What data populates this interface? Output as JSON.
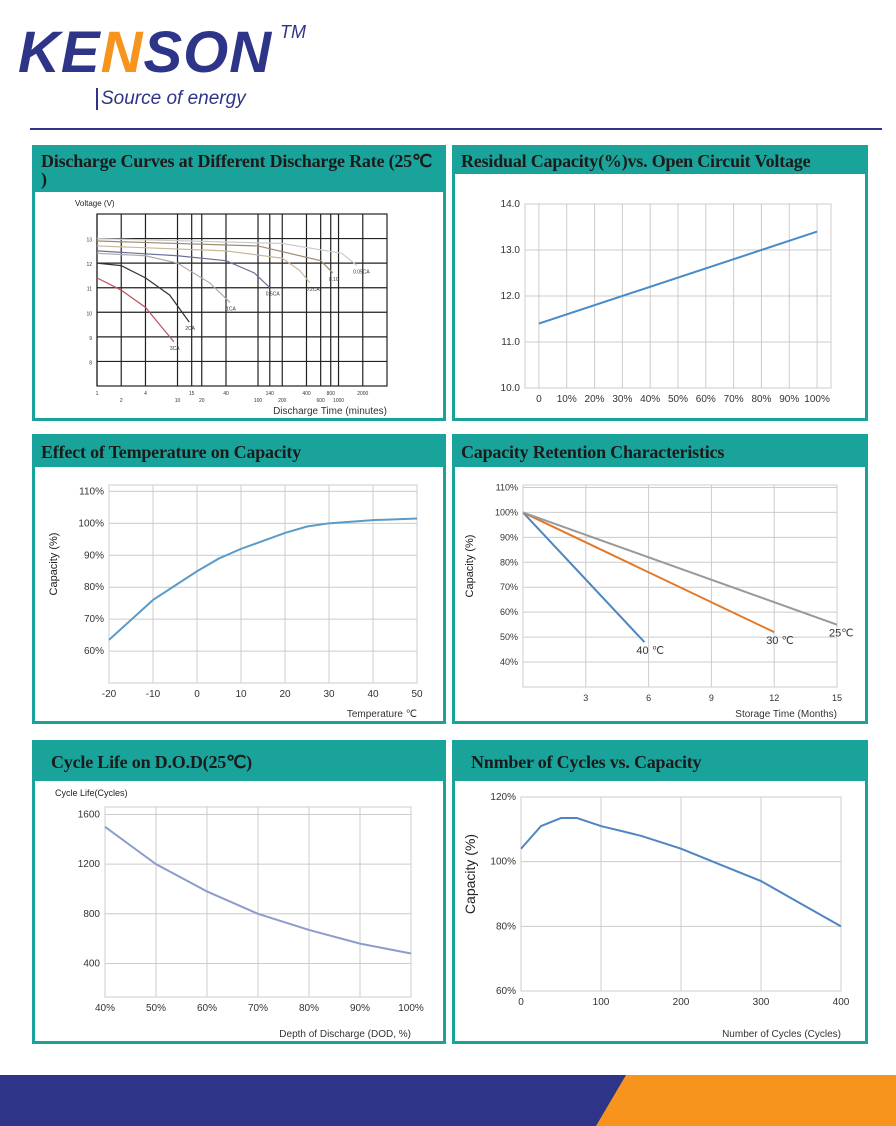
{
  "logo": {
    "brand": "KENSON",
    "tm": "TM",
    "tagline": "Source of energy"
  },
  "colors": {
    "brand_blue": "#2e3487",
    "accent_orange": "#f7941d",
    "panel_teal": "#1aa39a"
  },
  "chart_data": [
    {
      "type": "line",
      "title": "Discharge Curves at Different Discharge Rate (25℃ )",
      "ylabel": "Voltage (V)",
      "xlabel": "Discharge Time (minutes)",
      "x_scale": "log",
      "xticks": [
        "1",
        "2",
        "4",
        "10",
        "15",
        "20",
        "40",
        "100",
        "140",
        "200",
        "400",
        "600",
        "800",
        "1000",
        "2000"
      ],
      "xtick_values": [
        1,
        2,
        4,
        10,
        15,
        20,
        40,
        100,
        140,
        200,
        400,
        600,
        800,
        1000,
        2000
      ],
      "yticks": [
        8,
        9,
        10,
        11,
        12,
        13
      ],
      "ylim": [
        7,
        14
      ],
      "xlim": [
        1,
        4000
      ],
      "grid": true,
      "series": [
        {
          "name": "3CA",
          "color": "#c0505e",
          "x": [
            1,
            2,
            4,
            6,
            9
          ],
          "y": [
            11.4,
            10.9,
            10.2,
            9.5,
            8.8
          ]
        },
        {
          "name": "2CA",
          "color": "#333333",
          "x": [
            1,
            2,
            4,
            8,
            14
          ],
          "y": [
            12,
            11.9,
            11.4,
            10.7,
            9.6
          ]
        },
        {
          "name": "1CA",
          "color": "#aaaaaa",
          "x": [
            1,
            4,
            10,
            25,
            45
          ],
          "y": [
            12.4,
            12.3,
            12.0,
            11.2,
            10.4
          ]
        },
        {
          "name": "0.5CA",
          "color": "#6a6f9a",
          "x": [
            1,
            10,
            40,
            90,
            140
          ],
          "y": [
            12.5,
            12.3,
            12.1,
            11.6,
            11.0
          ]
        },
        {
          "name": "0.2CA",
          "color": "#c8b99a",
          "x": [
            1,
            40,
            200,
            330,
            440
          ],
          "y": [
            12.7,
            12.5,
            12.2,
            11.7,
            11.2
          ]
        },
        {
          "name": "0.1C",
          "color": "#a08a70",
          "x": [
            1,
            100,
            600,
            850
          ],
          "y": [
            12.9,
            12.7,
            12.1,
            11.6
          ]
        },
        {
          "name": "0.05CA",
          "color": "#cccccc",
          "x": [
            1,
            200,
            1100,
            1700
          ],
          "y": [
            13.0,
            12.8,
            12.4,
            11.9
          ]
        }
      ]
    },
    {
      "type": "line",
      "title": "Residual Capacity(%)vs. Open Circuit Voltage",
      "xticks": [
        "0",
        "10%",
        "20%",
        "30%",
        "40%",
        "50%",
        "60%",
        "70%",
        "80%",
        "90%",
        "100%"
      ],
      "xtick_values": [
        0,
        10,
        20,
        30,
        40,
        50,
        60,
        70,
        80,
        90,
        100
      ],
      "yticks": [
        "10.0",
        "11.0",
        "12.0",
        "13.0",
        "14.0"
      ],
      "ytick_values": [
        10,
        11,
        12,
        13,
        14
      ],
      "xlim": [
        -5,
        105
      ],
      "ylim": [
        10,
        14
      ],
      "grid": true,
      "series": [
        {
          "color": "#4a8ac6",
          "x": [
            0,
            100
          ],
          "y": [
            11.4,
            13.4
          ]
        }
      ]
    },
    {
      "type": "line",
      "title": "Effect of Temperature on Capacity",
      "ylabel": "Capacity (%)",
      "xlabel": "Temperature ℃",
      "xticks": [
        "-20",
        "-10",
        "0",
        "10",
        "20",
        "30",
        "40",
        "50"
      ],
      "xtick_values": [
        -20,
        -10,
        0,
        10,
        20,
        30,
        40,
        50
      ],
      "yticks": [
        "60%",
        "70%",
        "80%",
        "90%",
        "100%",
        "110%"
      ],
      "ytick_values": [
        60,
        70,
        80,
        90,
        100,
        110
      ],
      "xlim": [
        -20,
        50
      ],
      "ylim": [
        50,
        112
      ],
      "grid": true,
      "series": [
        {
          "color": "#5b9bc9",
          "x": [
            -20,
            -10,
            0,
            5,
            10,
            20,
            25,
            30,
            40,
            50
          ],
          "y": [
            63.5,
            76,
            85,
            89,
            92,
            97,
            99,
            100,
            101,
            101.5
          ]
        }
      ]
    },
    {
      "type": "line",
      "title": "Capacity Retention Characteristics",
      "ylabel": "Capacity (%)",
      "xlabel": "Storage Time (Months)",
      "xticks": [
        "3",
        "6",
        "9",
        "12",
        "15"
      ],
      "xtick_values": [
        3,
        6,
        9,
        12,
        15
      ],
      "yticks": [
        "40%",
        "50%",
        "60%",
        "70%",
        "80%",
        "90%",
        "100%",
        "110%"
      ],
      "ytick_values": [
        40,
        50,
        60,
        70,
        80,
        90,
        100,
        110
      ],
      "xlim": [
        0,
        15
      ],
      "ylim": [
        30,
        111
      ],
      "grid": true,
      "series": [
        {
          "name": "40 ℃",
          "color": "#4f86c1",
          "x": [
            0,
            5.8
          ],
          "y": [
            100,
            48
          ]
        },
        {
          "name": "30 ℃",
          "color": "#e07a2a",
          "x": [
            0,
            12
          ],
          "y": [
            100,
            52
          ]
        },
        {
          "name": "25℃",
          "color": "#999999",
          "x": [
            0,
            15
          ],
          "y": [
            100,
            55
          ]
        }
      ]
    },
    {
      "type": "line",
      "title": "Cycle Life on D.O.D(25℃)",
      "ylabel": "Cycle Life(Cycles)",
      "xlabel": "Depth of Discharge (DOD, %)",
      "xticks": [
        "40%",
        "50%",
        "60%",
        "70%",
        "80%",
        "90%",
        "100%"
      ],
      "xtick_values": [
        40,
        50,
        60,
        70,
        80,
        90,
        100
      ],
      "yticks": [
        "400",
        "800",
        "1200",
        "1600"
      ],
      "ytick_values": [
        400,
        800,
        1200,
        1600
      ],
      "xlim": [
        40,
        100
      ],
      "ylim": [
        130,
        1660
      ],
      "grid": true,
      "series": [
        {
          "color": "#8e9ccc",
          "x": [
            40,
            50,
            60,
            70,
            80,
            90,
            100
          ],
          "y": [
            1500,
            1200,
            980,
            800,
            670,
            560,
            480
          ]
        }
      ]
    },
    {
      "type": "line",
      "title": "Nnmber of Cycles vs. Capacity",
      "ylabel": "Capacity  (%)",
      "xlabel": "Number of Cycles (Cycles)",
      "xticks": [
        "0",
        "100",
        "200",
        "300",
        "400"
      ],
      "xtick_values": [
        0,
        100,
        200,
        300,
        400
      ],
      "yticks": [
        "60%",
        "80%",
        "100%",
        "120%"
      ],
      "ytick_values": [
        60,
        80,
        100,
        120
      ],
      "xlim": [
        0,
        400
      ],
      "ylim": [
        60,
        120
      ],
      "grid": true,
      "series": [
        {
          "color": "#4f86c1",
          "x": [
            0,
            25,
            50,
            70,
            100,
            150,
            200,
            250,
            300,
            350,
            400
          ],
          "y": [
            104,
            111,
            113.5,
            113.5,
            111,
            108,
            104,
            99,
            94,
            87,
            80
          ]
        }
      ]
    }
  ]
}
